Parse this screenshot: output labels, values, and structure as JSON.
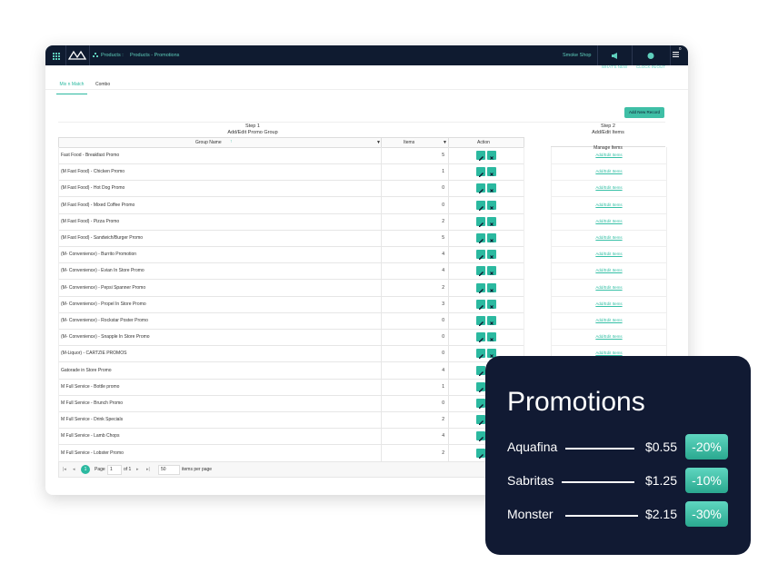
{
  "nav": {
    "breadcrumb_root": "Products :",
    "breadcrumb_page": "Products - Promotions",
    "store": "Smoke Shop",
    "whats_new": "WHAT'S NEW",
    "clock": "CLOCK IN/OUT",
    "badge": "0"
  },
  "tabs": [
    "Mix n Match",
    "Combo"
  ],
  "add_button": "Add New Record",
  "step1": {
    "step": "Step 1",
    "title": "Add/Edit Promo Group",
    "headers": [
      "Group Name",
      "Items",
      "Action"
    ]
  },
  "step2": {
    "step": "Step 2",
    "title": "Add/Edit Items",
    "header": "Manage Items",
    "link": "Add/Edit Items"
  },
  "table": {
    "rows": [
      [
        "Fast Food - Breakfast Promo",
        "5"
      ],
      [
        "(M Fast Food) - Chicken Promo",
        "1"
      ],
      [
        "(M Fast Food) - Hot Dog Promo",
        "0"
      ],
      [
        "(M Fast Food) - Mixed Coffee Promo",
        "0"
      ],
      [
        "(M Fast Food) - Pizza Promo",
        "2"
      ],
      [
        "(M Fast Food) - Sandwich/Burger Promo",
        "5"
      ],
      [
        "(M- Convenience) - Burrito Promotion",
        "4"
      ],
      [
        "(M- Convenience) - Evian In Store Promo",
        "4"
      ],
      [
        "(M- Convenience) - Pepsi Spanner Promo",
        "2"
      ],
      [
        "(M- Convenience) - Propel In Store Promo",
        "3"
      ],
      [
        "(M- Convenience) - Rockstar Poster Promo",
        "0"
      ],
      [
        "(M- Convenience) - Snapple In Store Promo",
        "0"
      ],
      [
        "(M-Liquor) - CARTZIE PROMOS",
        "0"
      ],
      [
        "Gatorade in Store Promo",
        "4"
      ],
      [
        "M Full Service - Bottle promo",
        "1"
      ],
      [
        "M Full Service - Brunch Promo",
        "0"
      ],
      [
        "M Full Service - Drink Specials",
        "2"
      ],
      [
        "M Full Service - Lamb Chops",
        "4"
      ],
      [
        "M Full Service - Lobster Promo",
        "2"
      ]
    ]
  },
  "pager": {
    "current": "1",
    "page_label": "Page",
    "page_input": "1",
    "of": "of 1",
    "size": "50",
    "per_page": "items per page"
  },
  "card": {
    "title": "Promotions",
    "items": [
      {
        "name": "Aquafina",
        "price": "$0.55",
        "discount": "-20%"
      },
      {
        "name": "Sabritas",
        "price": "$1.25",
        "discount": "-10%"
      },
      {
        "name": "Monster",
        "price": "$2.15",
        "discount": "-30%"
      }
    ]
  }
}
